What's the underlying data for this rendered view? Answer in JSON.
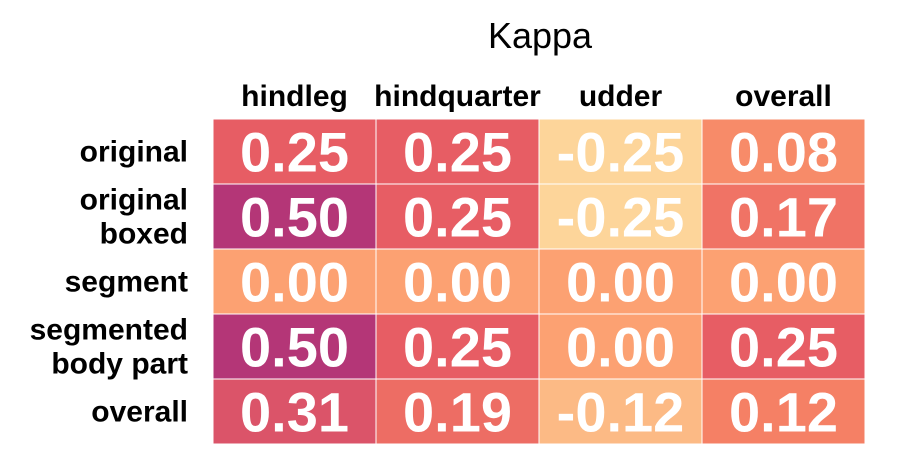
{
  "chart_data": {
    "type": "heatmap",
    "title": "Kappa",
    "columns": [
      "hindleg",
      "hindquarter",
      "udder",
      "overall"
    ],
    "rows": [
      {
        "label": [
          "original"
        ],
        "values": [
          0.25,
          0.25,
          -0.25,
          0.08
        ],
        "display": [
          "0.25",
          "0.25",
          "-0.25",
          "0.08"
        ]
      },
      {
        "label": [
          "original",
          "boxed"
        ],
        "values": [
          0.5,
          0.25,
          -0.25,
          0.17
        ],
        "display": [
          "0.50",
          "0.25",
          "-0.25",
          "0.17"
        ]
      },
      {
        "label": [
          "segment"
        ],
        "values": [
          0.0,
          0.0,
          0.0,
          0.0
        ],
        "display": [
          "0.00",
          "0.00",
          "0.00",
          "0.00"
        ]
      },
      {
        "label": [
          "segmented",
          "body part"
        ],
        "values": [
          0.5,
          0.25,
          0.0,
          0.25
        ],
        "display": [
          "0.50",
          "0.25",
          "0.00",
          "0.25"
        ]
      },
      {
        "label": [
          "overall"
        ],
        "values": [
          0.31,
          0.19,
          -0.12,
          0.12
        ],
        "display": [
          "0.31",
          "0.19",
          "-0.12",
          "0.12"
        ]
      }
    ],
    "value_range": [
      -0.25,
      0.5
    ],
    "colors": {
      "low": "#FDD59A",
      "mid_low": "#FCA172",
      "mid": "#F58065",
      "mid_high": "#E75D64",
      "high": "#B43677"
    },
    "cell_text_color": "#FFFFFF",
    "grid_line_color": "#FFFFFF",
    "legend": "none"
  }
}
